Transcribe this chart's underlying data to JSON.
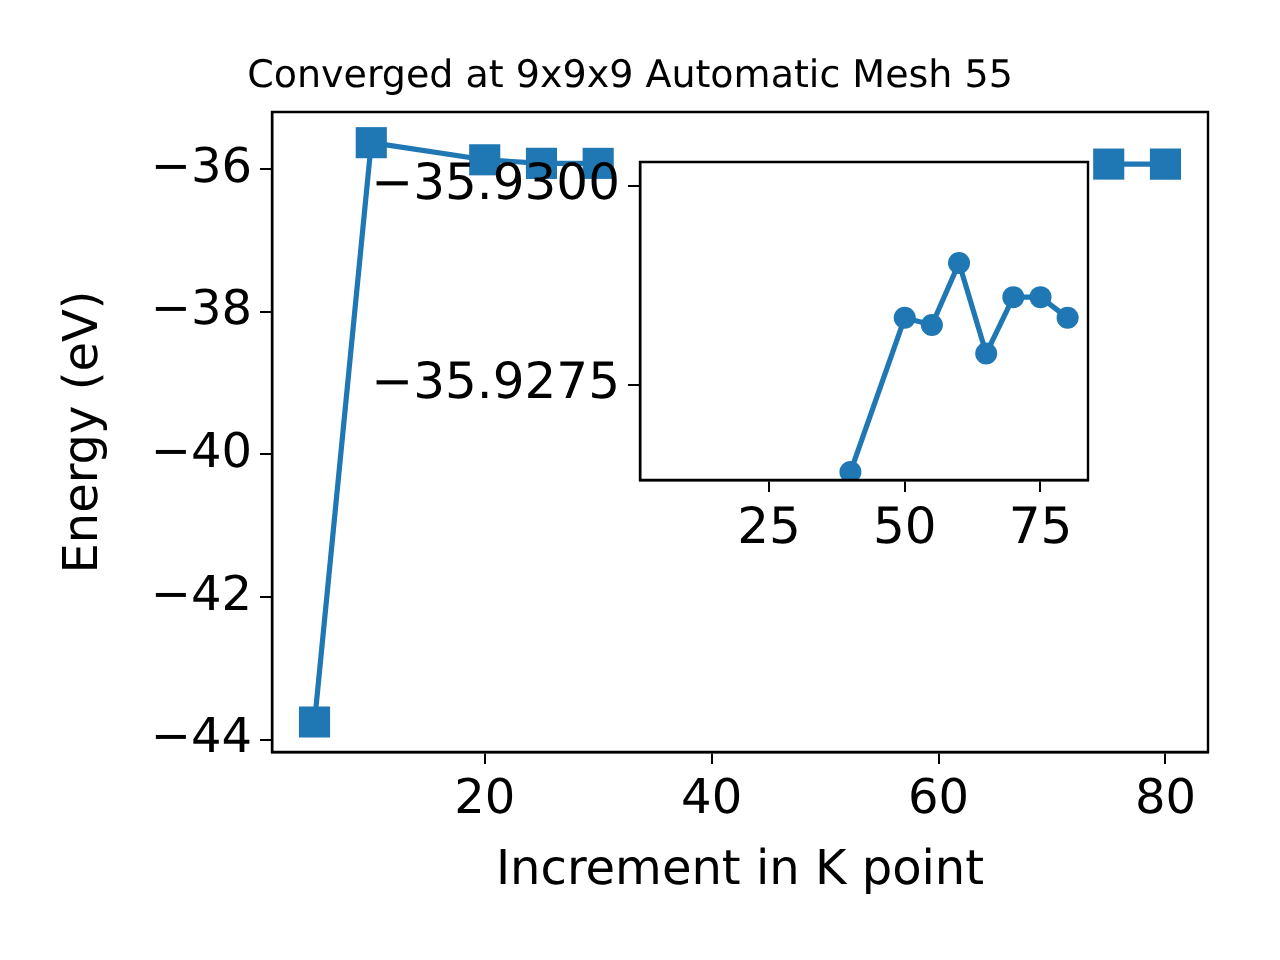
{
  "chart_data": [
    {
      "type": "line",
      "title": "Converged at 9x9x9 Automatic Mesh 55",
      "xlabel": "Increment in K point",
      "ylabel": "Energy (eV)",
      "x": [
        5,
        10,
        20,
        25,
        30,
        35,
        40,
        50,
        55,
        60,
        65,
        70,
        75,
        80
      ],
      "series": [
        {
          "color": "#1f77b4",
          "values": [
            -43.75,
            -35.63,
            -35.87,
            -35.92,
            -35.92,
            null,
            null,
            null,
            null,
            null,
            null,
            null,
            -35.93,
            -35.93
          ]
        }
      ],
      "marker": "square",
      "xlim": [
        1.25,
        83.75
      ],
      "ylim": [
        -44.17,
        -35.2
      ],
      "xticks": [
        20,
        40,
        60,
        80
      ],
      "yticks": [
        {
          "value": -44,
          "label": "−44"
        },
        {
          "value": -42,
          "label": "−42"
        },
        {
          "value": -40,
          "label": "−40"
        },
        {
          "value": -38,
          "label": "−38"
        },
        {
          "value": -36,
          "label": "−36"
        }
      ]
    },
    {
      "type": "line",
      "x": [
        40,
        50,
        55,
        60,
        65,
        70,
        75,
        80
      ],
      "series": [
        {
          "color": "#1f77b4",
          "values": [
            -35.9264,
            -35.92834,
            -35.92825,
            -35.92903,
            -35.92789,
            -35.9286,
            -35.9286,
            -35.92834
          ]
        }
      ],
      "marker": "circle",
      "xlim": [
        1.25,
        83.75
      ],
      "ylim": [
        -35.9263,
        -35.9303
      ],
      "xticks": [
        25,
        50,
        75
      ],
      "yticks": [
        {
          "value": -35.93,
          "label": "−35.9300"
        },
        {
          "value": -35.9275,
          "label": "−35.9275"
        }
      ]
    }
  ]
}
